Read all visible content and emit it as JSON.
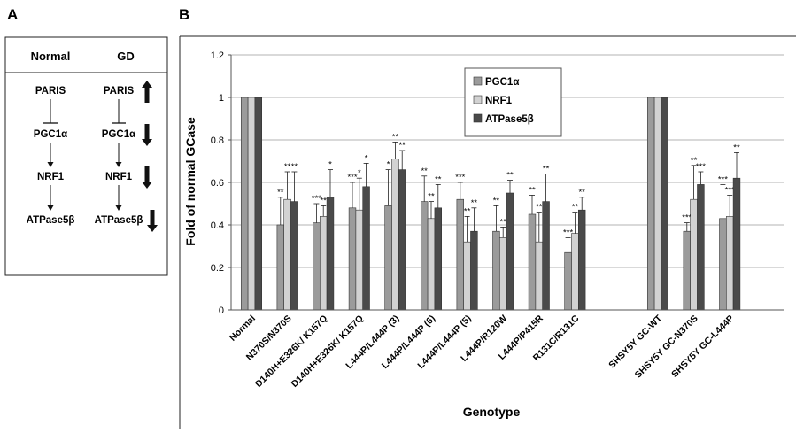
{
  "panel_a": {
    "letter": "A",
    "columns": [
      {
        "header": "Normal",
        "nodes": [
          "PARIS",
          "PGC1α",
          "NRF1",
          "ATPase5β"
        ],
        "changes": [
          "",
          "",
          "",
          ""
        ]
      },
      {
        "header": "GD",
        "nodes": [
          "PARIS",
          "PGC1α",
          "NRF1",
          "ATPase5β"
        ],
        "changes": [
          "up",
          "down",
          "down",
          "down"
        ]
      }
    ]
  },
  "panel_b": {
    "letter": "B"
  },
  "colors": {
    "PGC1α": "#9b9b9b",
    "NRF1": "#d2d2d2",
    "ATPase5β": "#4a4a4a"
  },
  "chart_data": {
    "type": "bar",
    "title": "",
    "xlabel": "Genotype",
    "ylabel": "Fold of normal GCase",
    "ylim": [
      0,
      1.2
    ],
    "yticks": [
      "0",
      "0.2",
      "0.4",
      "0.6",
      "0.8",
      "1",
      "1.2"
    ],
    "grid": true,
    "legend_position": "top-center",
    "categories": [
      "Normal",
      "N370S/N370S",
      "D140H+E326K/ K157Q",
      "D140H+E326K/ K157Q",
      "L444P/L444P (3)",
      "L444P/L444P (6)",
      "L444P/L444P (5)",
      "L444P/R120W",
      "L444P/P415R",
      "R131C/R131C",
      "SHSY5Y GC-WT",
      "SHSY5Y GC-N370S",
      "SHSY5Y GC-L444P"
    ],
    "series": [
      {
        "name": "PGC1α",
        "values": [
          1,
          0.4,
          0.41,
          0.48,
          0.49,
          0.51,
          0.52,
          0.37,
          0.45,
          0.27,
          1,
          0.37,
          0.43
        ],
        "errors": [
          0,
          0.13,
          0.09,
          0.12,
          0.17,
          0.12,
          0.08,
          0.12,
          0.09,
          0.07,
          0,
          0.04,
          0.16
        ],
        "sig": [
          "",
          "**",
          "***",
          "***",
          "*",
          "**",
          "***",
          "**",
          "**",
          "***",
          "",
          "***",
          "***"
        ]
      },
      {
        "name": "NRF1",
        "values": [
          1,
          0.52,
          0.44,
          0.47,
          0.71,
          0.43,
          0.32,
          0.34,
          0.32,
          0.36,
          1,
          0.52,
          0.44
        ],
        "errors": [
          0,
          0.13,
          0.05,
          0.15,
          0.08,
          0.08,
          0.12,
          0.05,
          0.14,
          0.1,
          0,
          0.16,
          0.1
        ],
        "sig": [
          "",
          "**",
          "**",
          "*",
          "**",
          "**",
          "**",
          "**",
          "**",
          "**",
          "",
          "**",
          "***"
        ]
      },
      {
        "name": "ATPase5β",
        "values": [
          1,
          0.51,
          0.53,
          0.58,
          0.66,
          0.48,
          0.37,
          0.55,
          0.51,
          0.47,
          1,
          0.59,
          0.62
        ],
        "errors": [
          0,
          0.14,
          0.13,
          0.11,
          0.09,
          0.11,
          0.11,
          0.06,
          0.13,
          0.06,
          0,
          0.06,
          0.12
        ],
        "sig": [
          "",
          "**",
          "*",
          "*",
          "**",
          "**",
          "**",
          "**",
          "**",
          "**",
          "",
          "***",
          "**"
        ]
      }
    ]
  }
}
